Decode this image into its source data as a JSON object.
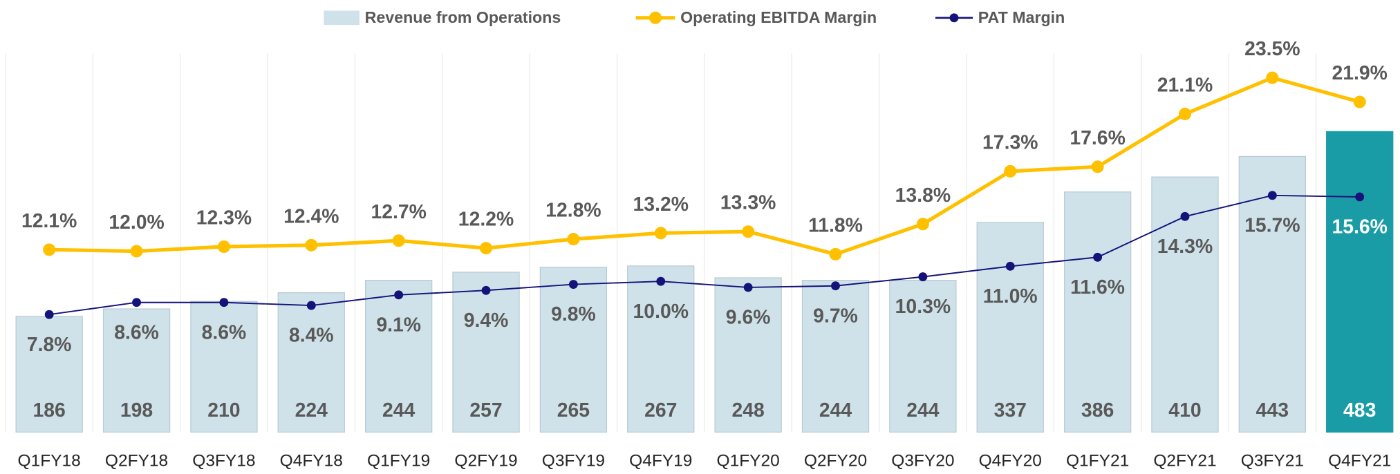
{
  "chart_data": {
    "type": "bar_line",
    "categories": [
      "Q1FY18",
      "Q2FY18",
      "Q3FY18",
      "Q4FY18",
      "Q1FY19",
      "Q2FY19",
      "Q3FY19",
      "Q4FY19",
      "Q1FY20",
      "Q2FY20",
      "Q3FY20",
      "Q4FY20",
      "Q1FY21",
      "Q2FY21",
      "Q3FY21",
      "Q4FY21"
    ],
    "ylim": [
      0,
      630
    ],
    "y2lim": [
      0,
      26
    ],
    "series": [
      {
        "name": "Revenue from Operations",
        "type": "bar",
        "color": "#cfe2ea",
        "colors": [
          "#cfe2ea",
          "#cfe2ea",
          "#cfe2ea",
          "#cfe2ea",
          "#cfe2ea",
          "#cfe2ea",
          "#cfe2ea",
          "#cfe2ea",
          "#cfe2ea",
          "#cfe2ea",
          "#cfe2ea",
          "#cfe2ea",
          "#cfe2ea",
          "#cfe2ea",
          "#cfe2ea",
          "#1a9ca6"
        ],
        "values": [
          186,
          198,
          210,
          224,
          244,
          257,
          265,
          267,
          248,
          244,
          244,
          337,
          386,
          410,
          443,
          483
        ]
      },
      {
        "name": "Operating EBITDA Margin",
        "type": "line",
        "axis": "y2",
        "color": "#ffc000",
        "values": [
          12.1,
          12.0,
          12.3,
          12.4,
          12.7,
          12.2,
          12.8,
          13.2,
          13.3,
          11.8,
          13.8,
          17.3,
          17.6,
          21.1,
          23.5,
          21.9
        ],
        "value_labels": [
          "12.1%",
          "12.0%",
          "12.3%",
          "12.4%",
          "12.7%",
          "12.2%",
          "12.8%",
          "13.2%",
          "13.3%",
          "11.8%",
          "13.8%",
          "17.3%",
          "17.6%",
          "21.1%",
          "23.5%",
          "21.9%"
        ]
      },
      {
        "name": "PAT Margin",
        "type": "line",
        "axis": "y2",
        "color": "#14137a",
        "values": [
          7.8,
          8.6,
          8.6,
          8.4,
          9.1,
          9.4,
          9.8,
          10.0,
          9.6,
          9.7,
          10.3,
          11.0,
          11.6,
          14.3,
          15.7,
          15.6
        ],
        "value_labels": [
          "7.8%",
          "8.6%",
          "8.6%",
          "8.4%",
          "9.1%",
          "9.4%",
          "9.8%",
          "10.0%",
          "9.6%",
          "9.7%",
          "10.3%",
          "11.0%",
          "11.6%",
          "14.3%",
          "15.7%",
          "15.6%"
        ]
      }
    ]
  }
}
